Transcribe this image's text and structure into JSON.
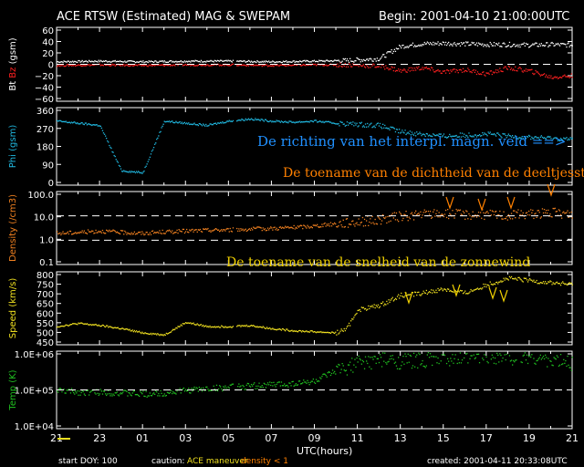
{
  "header": {
    "title": "ACE RTSW (Estimated) MAG & SWEPAM",
    "begin": "Begin: 2001-04-10 21:00:00UTC"
  },
  "footer": {
    "start_doy": "start DOY: 100",
    "caution": "caution:",
    "maneuver": "ACE maneuver",
    "density_note": "density < 1",
    "created": "created: 2001-04-11 20:33:08UTC",
    "xlabel": "UTC(hours)"
  },
  "annotations": {
    "phi": "De richting van het interpl. magn. veld ==>",
    "density": "De toename van de dichtheid van de deeltjesstroom",
    "speed": "De toename van de snelheid van de zonnewind"
  },
  "colors": {
    "bt": "#ffffff",
    "bz": "#ff2020",
    "phi": "#20b8e0",
    "density": "#f08020",
    "speed": "#f0e020",
    "temp": "#20c020",
    "phi_note": "#2090ff",
    "density_note": "#ff8000",
    "speed_note": "#f0d000",
    "maneuver": "#f0e020",
    "density_lt1": "#ff8000"
  },
  "chart_data": [
    {
      "type": "line",
      "panel": "magnetic-field",
      "ylabel": [
        "Bt",
        "Bz",
        "(gsm)"
      ],
      "yticks": [
        "60",
        "40",
        "20",
        "0",
        "−20",
        "−40",
        "−60"
      ],
      "ylim": [
        -60,
        60
      ],
      "xticks": [
        "21",
        "23",
        "01",
        "03",
        "05",
        "07",
        "09",
        "11",
        "13",
        "15",
        "17",
        "19",
        "21"
      ],
      "xlim": [
        0,
        24
      ],
      "series": [
        {
          "name": "Bt",
          "x": [
            0,
            2,
            4,
            6,
            8,
            10,
            12,
            13.5,
            15,
            15.5,
            16,
            17,
            18,
            19,
            20,
            21,
            22,
            23,
            24
          ],
          "values": [
            5,
            6,
            5,
            6,
            6,
            5,
            6,
            7,
            10,
            20,
            30,
            34,
            35,
            34,
            33,
            33,
            32,
            33,
            32
          ]
        },
        {
          "name": "Bz",
          "x": [
            0,
            2,
            4,
            6,
            8,
            10,
            12,
            13.5,
            15,
            15.5,
            16,
            17,
            18,
            19,
            20,
            21,
            22,
            23,
            24
          ],
          "values": [
            -1,
            0,
            -1,
            0,
            0,
            -1,
            0,
            0,
            -2,
            -5,
            -10,
            -5,
            -12,
            -8,
            -15,
            -5,
            -10,
            -20,
            -18
          ]
        }
      ]
    },
    {
      "type": "scatter",
      "panel": "phi",
      "ylabel": [
        "Phi",
        "(gsm)"
      ],
      "yticks": [
        "360",
        "270",
        "180",
        "90",
        "0"
      ],
      "ylim": [
        0,
        360
      ],
      "series": [
        {
          "name": "Phi",
          "x": [
            0,
            1,
            2,
            3,
            4,
            5,
            6,
            7,
            8,
            9,
            10,
            11,
            12,
            13,
            14,
            15,
            16,
            17,
            18,
            19,
            20,
            21,
            22,
            23,
            24
          ],
          "values": [
            300,
            290,
            280,
            70,
            60,
            300,
            290,
            280,
            300,
            310,
            300,
            295,
            300,
            290,
            285,
            280,
            250,
            240,
            230,
            235,
            240,
            230,
            225,
            220,
            215
          ]
        }
      ]
    },
    {
      "type": "scatter",
      "panel": "density",
      "ylabel": [
        "Density",
        "(/cm3)"
      ],
      "yticks": [
        "100.0",
        "10.0",
        "1.0",
        "0.1"
      ],
      "yscale": "log",
      "ylim": [
        0.1,
        100
      ],
      "series": [
        {
          "name": "Density",
          "x": [
            0,
            1,
            2,
            3,
            4,
            5,
            6,
            7,
            8,
            9,
            10,
            11,
            12,
            13,
            14,
            15,
            16,
            17,
            18,
            19,
            20,
            21,
            22,
            23,
            24
          ],
          "values": [
            2,
            2.2,
            2.5,
            2.2,
            2.0,
            2.3,
            2.5,
            2.7,
            2.8,
            3.0,
            3.2,
            3.5,
            4,
            5,
            6,
            7,
            10,
            12,
            13,
            12,
            12,
            11,
            13,
            14,
            12
          ]
        }
      ]
    },
    {
      "type": "scatter",
      "panel": "speed",
      "ylabel": [
        "Speed",
        "(km/s)"
      ],
      "yticks": [
        "800",
        "750",
        "700",
        "650",
        "600",
        "550",
        "500",
        "450"
      ],
      "ylim": [
        450,
        800
      ],
      "series": [
        {
          "name": "Speed",
          "x": [
            0,
            1,
            2,
            3,
            4,
            5,
            6,
            7,
            8,
            9,
            10,
            11,
            12,
            13,
            13.5,
            14,
            15,
            16,
            17,
            18,
            19,
            20,
            21,
            22,
            23,
            24
          ],
          "values": [
            540,
            555,
            545,
            530,
            510,
            500,
            560,
            540,
            540,
            545,
            530,
            520,
            515,
            510,
            530,
            620,
            640,
            690,
            700,
            720,
            700,
            740,
            770,
            760,
            750,
            740
          ]
        }
      ]
    },
    {
      "type": "scatter",
      "panel": "temp",
      "ylabel": [
        "Temp",
        "(K)"
      ],
      "yticks": [
        "1.0E+06",
        "1.0E+05",
        "1.0E+04"
      ],
      "yscale": "log",
      "ylim": [
        10000,
        1000000
      ],
      "series": [
        {
          "name": "Temp",
          "x": [
            0,
            1,
            2,
            3,
            4,
            5,
            6,
            7,
            8,
            9,
            10,
            11,
            12,
            13,
            14,
            15,
            16,
            17,
            18,
            19,
            20,
            21,
            22,
            23,
            24
          ],
          "values": [
            100000,
            90000,
            90000,
            85000,
            80000,
            85000,
            100000,
            110000,
            120000,
            130000,
            140000,
            150000,
            170000,
            300000,
            500000,
            600000,
            550000,
            600000,
            700000,
            650000,
            800000,
            700000,
            750000,
            600000,
            500000
          ]
        }
      ]
    }
  ]
}
